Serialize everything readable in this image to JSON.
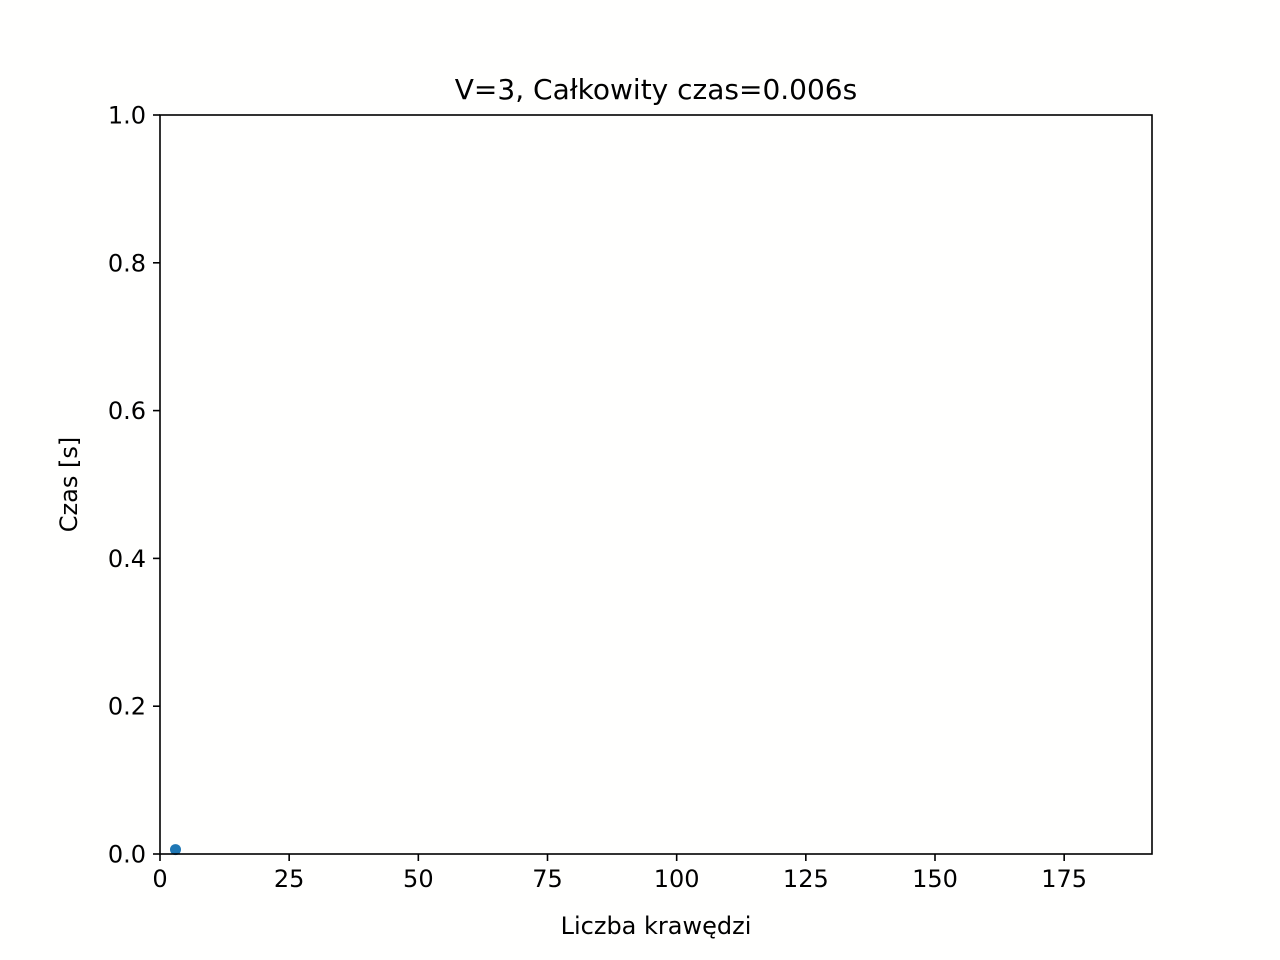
{
  "chart_data": {
    "type": "scatter",
    "title": "V=3, Całkowity czas=0.006s",
    "xlabel": "Liczba krawędzi",
    "ylabel": "Czas [s]",
    "xlim": [
      0,
      192
    ],
    "ylim": [
      0,
      1
    ],
    "x_ticks": [
      0,
      25,
      50,
      75,
      100,
      125,
      150,
      175
    ],
    "x_tick_labels": [
      "0",
      "25",
      "50",
      "75",
      "100",
      "125",
      "150",
      "175"
    ],
    "y_ticks": [
      0,
      0.2,
      0.4,
      0.6,
      0.8,
      1.0
    ],
    "y_tick_labels": [
      "0.0",
      "0.2",
      "0.4",
      "0.6",
      "0.8",
      "1.0"
    ],
    "grid": false,
    "legend": "none",
    "series": [
      {
        "color": "#1f77b4",
        "points": [
          {
            "x": 3,
            "y": 0.006
          }
        ]
      }
    ]
  }
}
